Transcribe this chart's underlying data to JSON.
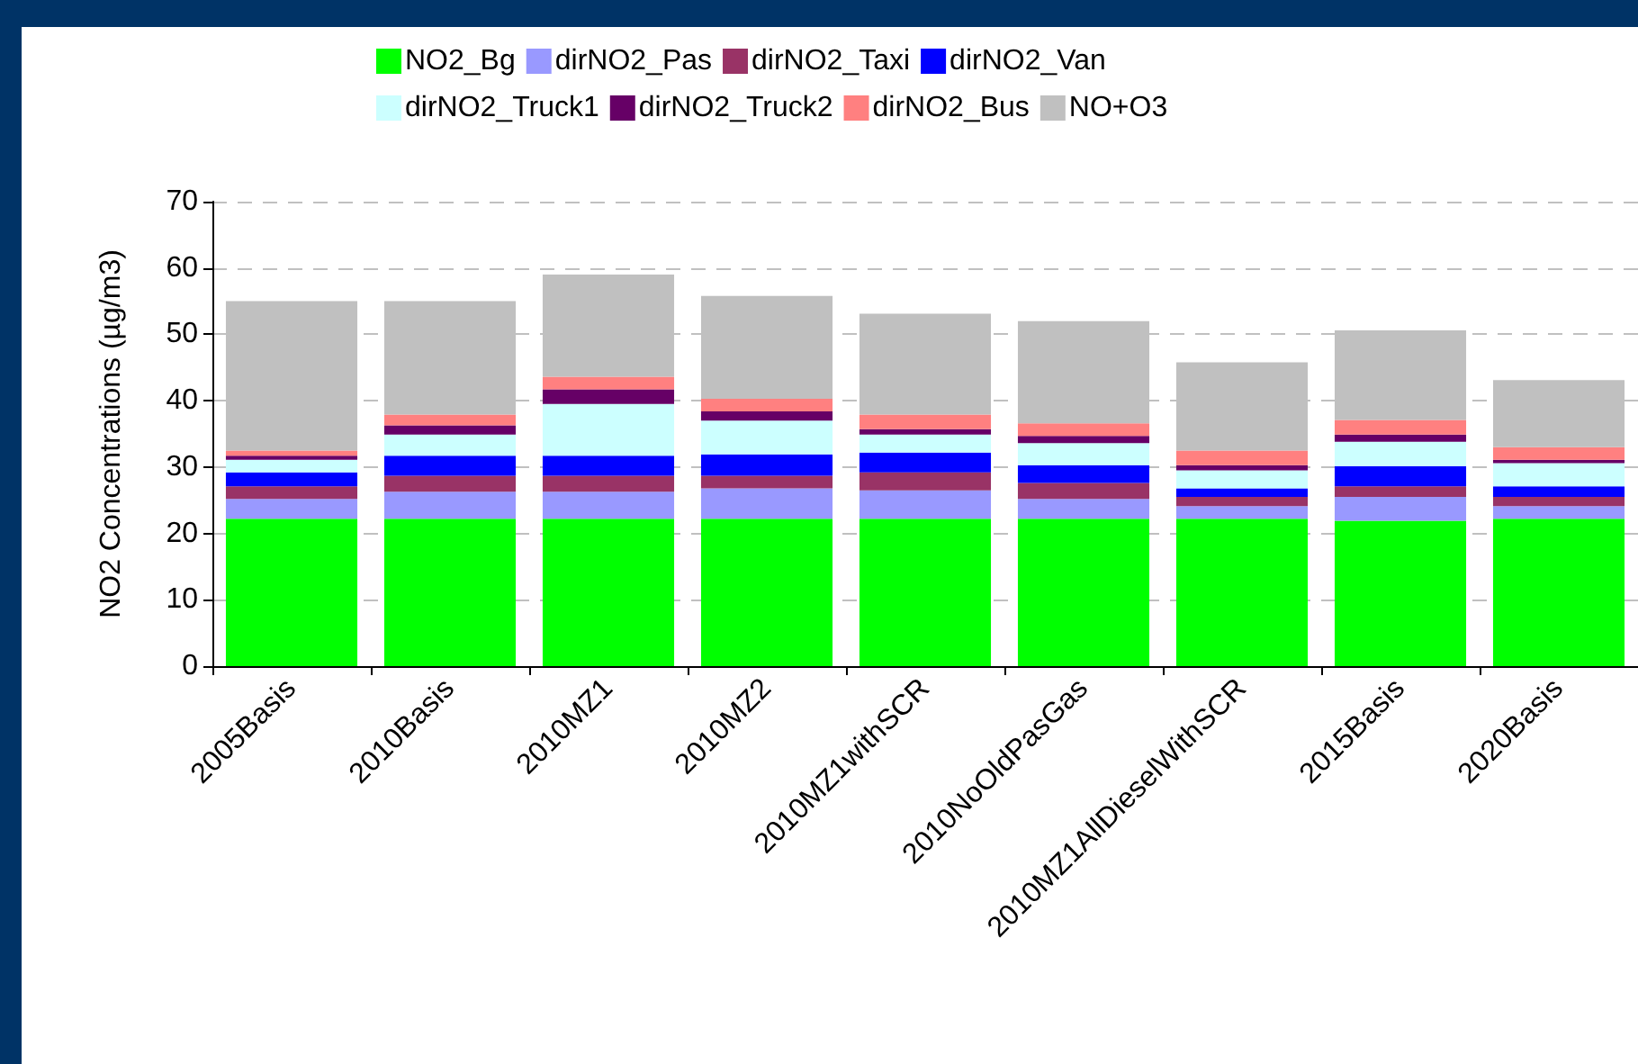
{
  "chart_data": {
    "type": "bar",
    "stacked": true,
    "ylabel": "NO2 Concentrations (µg/m3)",
    "categories": [
      "2005Basis",
      "2010Basis",
      "2010MZ1",
      "2010MZ2",
      "2010MZ1withSCR",
      "2010NoOldPasGas",
      "2010MZ1AllDieselWithSCR",
      "2015Basis",
      "2020Basis"
    ],
    "series": [
      {
        "name": "NO2_Bg",
        "color": "#00ff00",
        "values": [
          22.2,
          22.2,
          22.2,
          22.2,
          22.2,
          22.2,
          22.2,
          21.9,
          22.2
        ]
      },
      {
        "name": "dirNO2_Pas",
        "color": "#9999ff",
        "values": [
          3.0,
          4.1,
          4.1,
          4.6,
          4.3,
          3.0,
          1.9,
          3.6,
          1.9
        ]
      },
      {
        "name": "dirNO2_Taxi",
        "color": "#993366",
        "values": [
          1.9,
          2.4,
          2.4,
          1.9,
          2.7,
          2.4,
          1.4,
          1.6,
          1.4
        ]
      },
      {
        "name": "dirNO2_Van",
        "color": "#0000ff",
        "values": [
          2.1,
          3.0,
          3.0,
          3.2,
          3.0,
          2.7,
          1.3,
          3.0,
          1.6
        ]
      },
      {
        "name": "dirNO2_Truck1",
        "color": "#ccffff",
        "values": [
          1.9,
          3.2,
          7.8,
          5.1,
          2.7,
          3.3,
          2.7,
          3.7,
          3.5
        ]
      },
      {
        "name": "dirNO2_Truck2",
        "color": "#660066",
        "values": [
          0.6,
          1.4,
          2.2,
          1.4,
          0.8,
          1.1,
          0.8,
          1.1,
          0.5
        ]
      },
      {
        "name": "dirNO2_Bus",
        "color": "#ff8080",
        "values": [
          0.8,
          1.6,
          1.9,
          1.9,
          2.2,
          1.9,
          2.2,
          2.2,
          1.9
        ]
      },
      {
        "name": "NO+O3",
        "color": "#c0c0c0",
        "values": [
          22.5,
          17.1,
          15.4,
          15.5,
          15.2,
          15.4,
          13.3,
          13.5,
          10.1
        ]
      }
    ],
    "ylim": [
      0,
      70
    ],
    "yticks": [
      0,
      10,
      20,
      30,
      40,
      50,
      60,
      70
    ],
    "grid": "y",
    "legend": "top"
  }
}
